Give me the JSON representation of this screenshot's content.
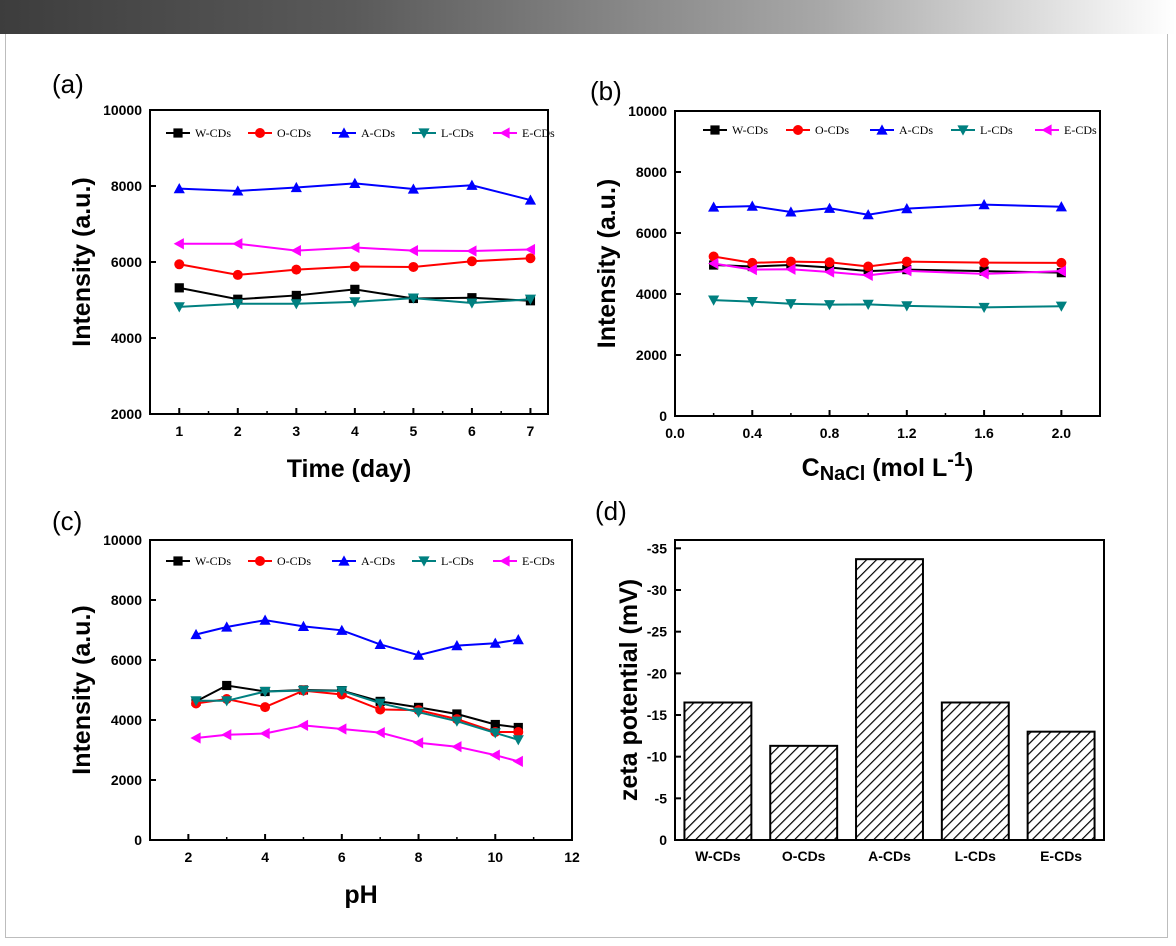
{
  "colors": {
    "W-CDs": "#000000",
    "O-CDs": "#ff0000",
    "A-CDs": "#0000ff",
    "L-CDs": "#008080",
    "E-CDs": "#ff00ff"
  },
  "chart_data": [
    {
      "panel": "(a)",
      "type": "line",
      "xlabel": "Time (day)",
      "ylabel": "Intensity (a.u.)",
      "xlim": [
        0.5,
        7.3
      ],
      "ylim": [
        2000,
        10000
      ],
      "xticks": [
        1,
        2,
        3,
        4,
        5,
        6,
        7
      ],
      "xtick_labels": [
        "1",
        "2",
        "3",
        "4",
        "5",
        "6",
        "7"
      ],
      "yticks": [
        2000,
        4000,
        6000,
        8000,
        10000
      ],
      "ytick_labels": [
        "2000",
        "4000",
        "6000",
        "8000",
        "10000"
      ],
      "x": [
        1,
        2,
        3,
        4,
        5,
        6,
        7
      ],
      "series": [
        {
          "name": "W-CDs",
          "marker": "square",
          "values": [
            5320,
            5020,
            5120,
            5280,
            5040,
            5060,
            4980
          ]
        },
        {
          "name": "O-CDs",
          "marker": "circle",
          "values": [
            5940,
            5660,
            5800,
            5880,
            5870,
            6020,
            6100
          ]
        },
        {
          "name": "A-CDs",
          "marker": "triangle-up",
          "values": [
            7930,
            7870,
            7960,
            8070,
            7920,
            8020,
            7630
          ]
        },
        {
          "name": "L-CDs",
          "marker": "triangle-down",
          "values": [
            4820,
            4900,
            4900,
            4950,
            5050,
            4920,
            5020
          ]
        },
        {
          "name": "E-CDs",
          "marker": "triangle-left",
          "values": [
            6480,
            6480,
            6300,
            6380,
            6300,
            6290,
            6330
          ]
        }
      ]
    },
    {
      "panel": "(b)",
      "type": "line",
      "xlabel_main": "C",
      "xlabel_sub": "NaCl",
      "xlabel_unit": " (mol L",
      "xlabel_sup": "-1",
      "xlabel_close": ")",
      "ylabel": "Intensity (a.u.)",
      "xlim": [
        0.0,
        2.2
      ],
      "ylim": [
        0,
        10000
      ],
      "xticks": [
        0.0,
        0.4,
        0.8,
        1.2,
        1.6,
        2.0
      ],
      "xtick_labels": [
        "0.0",
        "0.4",
        "0.8",
        "1.2",
        "1.6",
        "2.0"
      ],
      "yticks": [
        0,
        2000,
        4000,
        6000,
        8000,
        10000
      ],
      "ytick_labels": [
        "0",
        "2000",
        "4000",
        "6000",
        "8000",
        "10000"
      ],
      "x": [
        0.2,
        0.4,
        0.6,
        0.8,
        1.0,
        1.2,
        1.6,
        2.0
      ],
      "series": [
        {
          "name": "W-CDs",
          "marker": "square",
          "values": [
            4950,
            4900,
            4950,
            4870,
            4750,
            4800,
            4750,
            4700
          ]
        },
        {
          "name": "O-CDs",
          "marker": "circle",
          "values": [
            5230,
            5020,
            5060,
            5040,
            4900,
            5060,
            5030,
            5020
          ]
        },
        {
          "name": "A-CDs",
          "marker": "triangle-up",
          "values": [
            6850,
            6880,
            6690,
            6810,
            6600,
            6800,
            6930,
            6860
          ]
        },
        {
          "name": "L-CDs",
          "marker": "triangle-down",
          "values": [
            3800,
            3750,
            3680,
            3650,
            3660,
            3610,
            3560,
            3600
          ]
        },
        {
          "name": "E-CDs",
          "marker": "triangle-left",
          "values": [
            5000,
            4800,
            4810,
            4720,
            4610,
            4760,
            4660,
            4750
          ]
        }
      ]
    },
    {
      "panel": "(c)",
      "type": "line",
      "xlabel": "pH",
      "ylabel": "Intensity (a.u.)",
      "xlim": [
        1,
        12
      ],
      "ylim": [
        0,
        10000
      ],
      "xticks": [
        2,
        4,
        6,
        8,
        10,
        12
      ],
      "xtick_labels": [
        "2",
        "4",
        "6",
        "8",
        "10",
        "12"
      ],
      "yticks": [
        0,
        2000,
        4000,
        6000,
        8000,
        10000
      ],
      "ytick_labels": [
        "0",
        "2000",
        "4000",
        "6000",
        "8000",
        "10000"
      ],
      "x": [
        2.2,
        3,
        4,
        5,
        6,
        7,
        8,
        9,
        10,
        10.6
      ],
      "series": [
        {
          "name": "W-CDs",
          "marker": "square",
          "values": [
            4620,
            5150,
            4950,
            5000,
            4980,
            4620,
            4420,
            4200,
            3850,
            3750
          ]
        },
        {
          "name": "O-CDs",
          "marker": "circle",
          "values": [
            4550,
            4700,
            4430,
            4980,
            4850,
            4350,
            4330,
            4030,
            3600,
            3600
          ]
        },
        {
          "name": "A-CDs",
          "marker": "triangle-up",
          "values": [
            6850,
            7100,
            7330,
            7120,
            6990,
            6520,
            6160,
            6480,
            6560,
            6680
          ]
        },
        {
          "name": "L-CDs",
          "marker": "triangle-down",
          "values": [
            4640,
            4640,
            4950,
            4980,
            4970,
            4560,
            4260,
            3960,
            3570,
            3340
          ]
        },
        {
          "name": "E-CDs",
          "marker": "triangle-left",
          "values": [
            3400,
            3510,
            3550,
            3820,
            3700,
            3580,
            3240,
            3110,
            2830,
            2620
          ]
        }
      ]
    },
    {
      "panel": "(d)",
      "type": "bar",
      "xlabel": "",
      "ylabel": "zeta potential (mV)",
      "ylim": [
        0,
        -36
      ],
      "yticks": [
        0,
        -5,
        -10,
        -15,
        -20,
        -25,
        -30,
        -35
      ],
      "ytick_labels": [
        "0",
        "-5",
        "-10",
        "-15",
        "-20",
        "-25",
        "-30",
        "-35"
      ],
      "categories": [
        "W-CDs",
        "O-CDs",
        "A-CDs",
        "L-CDs",
        "E-CDs"
      ],
      "values": [
        -16.5,
        -11.3,
        -33.7,
        -16.5,
        -13.0
      ]
    }
  ]
}
